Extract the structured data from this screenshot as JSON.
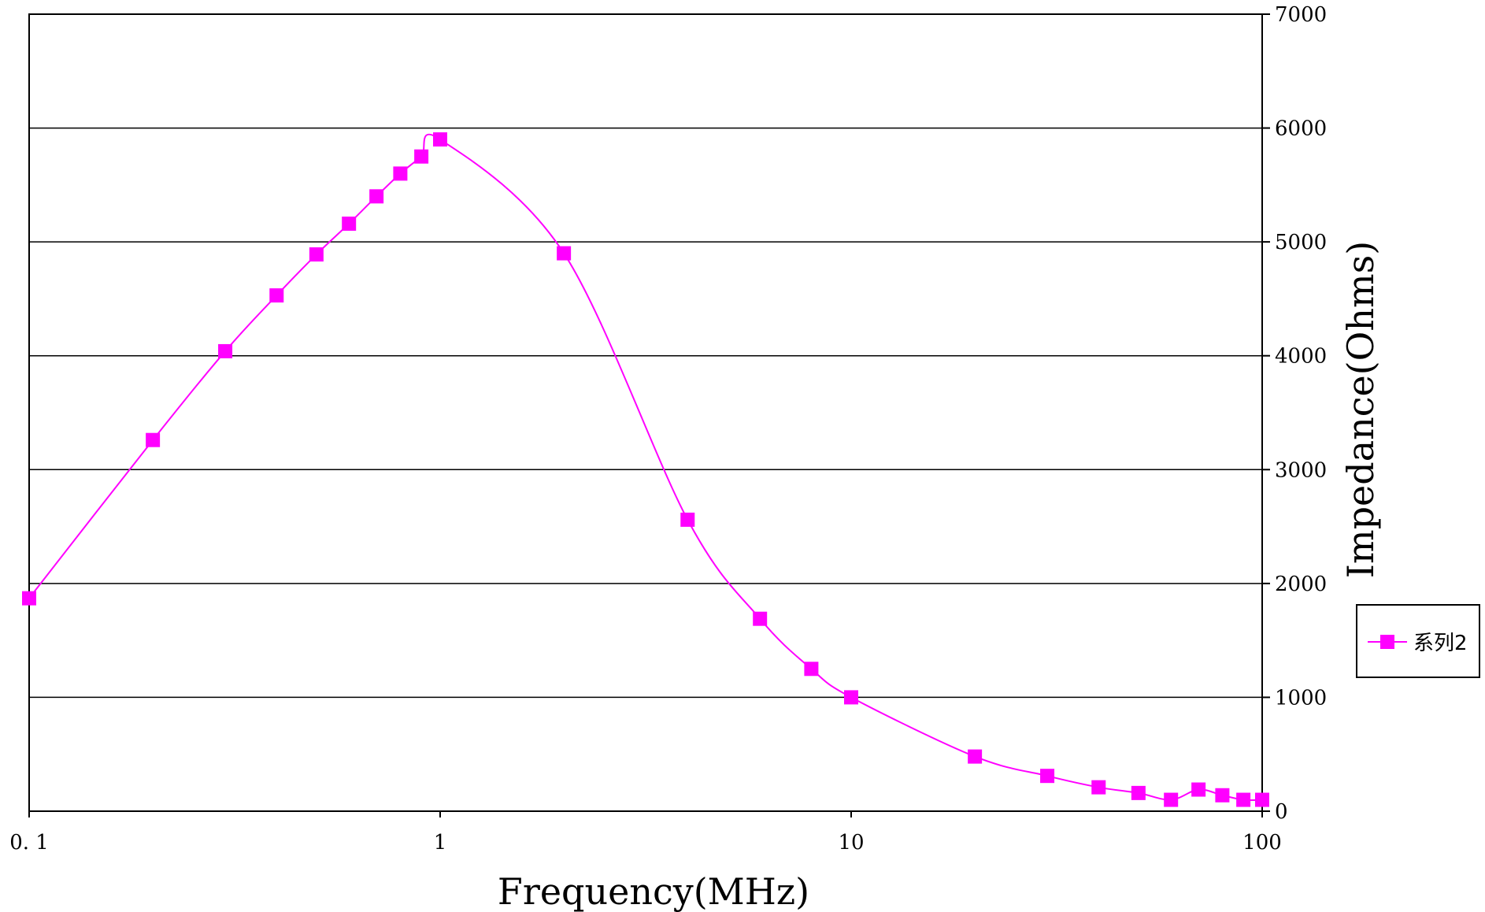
{
  "chart_data": {
    "type": "line",
    "x_scale": "log",
    "xlabel": "Frequency(MHz)",
    "ylabel": "Impedance(Ohms)",
    "y_axis_position": "right",
    "xlim": [
      0.1,
      100
    ],
    "ylim": [
      0,
      7000
    ],
    "x_ticks": [
      "0.1",
      "1",
      "10",
      "100"
    ],
    "y_ticks": [
      "0",
      "1000",
      "2000",
      "3000",
      "4000",
      "5000",
      "6000",
      "7000"
    ],
    "grid": "horizontal",
    "legend_position": "right",
    "series_color": "#ff00ff",
    "series": [
      {
        "name": "系列2",
        "marker": "square",
        "x": [
          0.1,
          0.2,
          0.3,
          0.4,
          0.5,
          0.6,
          0.7,
          0.8,
          0.9,
          1,
          2,
          4,
          6,
          8,
          10,
          20,
          30,
          40,
          50,
          60,
          70,
          80,
          90,
          100
        ],
        "y": [
          1870,
          3260,
          4040,
          4530,
          4890,
          5160,
          5400,
          5600,
          5750,
          5900,
          4900,
          2560,
          1690,
          1250,
          1000,
          480,
          310,
          210,
          160,
          100,
          190,
          140,
          100,
          100
        ]
      }
    ]
  }
}
